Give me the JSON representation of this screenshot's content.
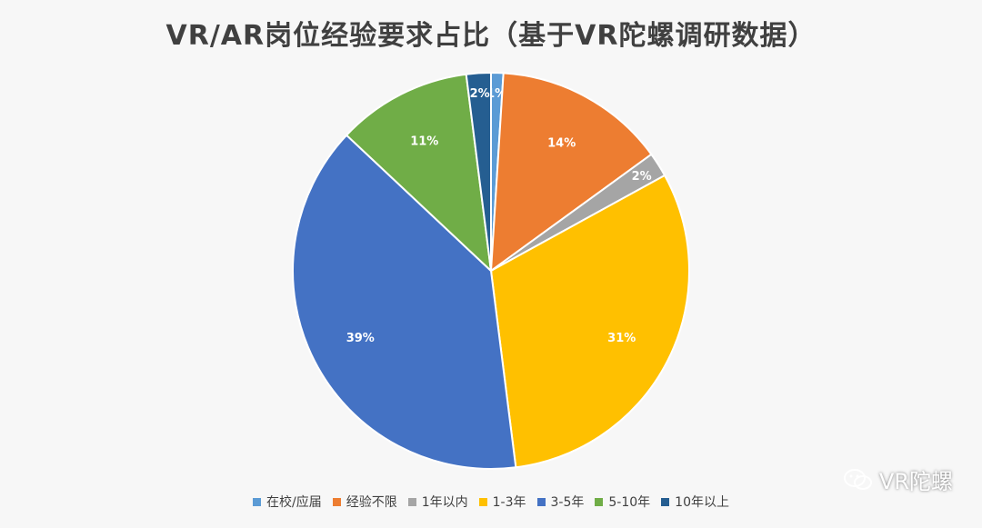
{
  "chart_data": {
    "type": "pie",
    "title": "VR/AR岗位经验要求占比（基于VR陀螺调研数据）",
    "legend_position": "bottom",
    "slices": [
      {
        "label": "在校/应届",
        "value": 1,
        "display": "1%",
        "color": "#5b9bd5"
      },
      {
        "label": "经验不限",
        "value": 14,
        "display": "14%",
        "color": "#ed7d31"
      },
      {
        "label": "1年以内",
        "value": 2,
        "display": "2%",
        "color": "#a5a5a5"
      },
      {
        "label": "1-3年",
        "value": 31,
        "display": "31%",
        "color": "#ffc000"
      },
      {
        "label": "3-5年",
        "value": 39,
        "display": "39%",
        "color": "#4472c4"
      },
      {
        "label": "5-10年",
        "value": 11,
        "display": "11%",
        "color": "#70ad47"
      },
      {
        "label": "10年以上",
        "value": 2,
        "display": "2%",
        "color": "#255e91"
      }
    ]
  },
  "watermark": {
    "text": "VR陀螺",
    "icon": "wechat-icon"
  }
}
